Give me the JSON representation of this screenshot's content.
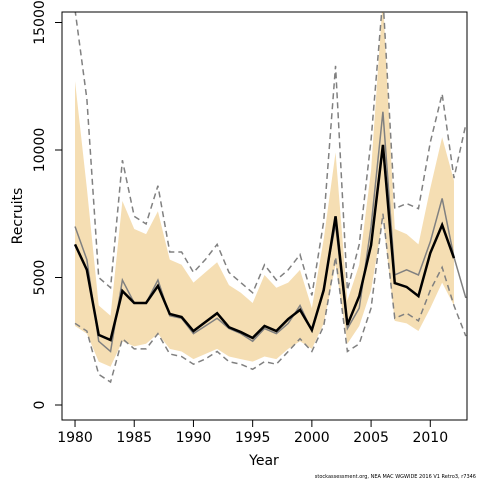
{
  "chart_data": {
    "type": "line",
    "xlabel": "Year",
    "ylabel": "Recruits",
    "footnote": "stockassessment.org, NEA MAC WGWIDE 2016 V1 Retro3, r7346",
    "x": [
      1980,
      1981,
      1982,
      1983,
      1984,
      1985,
      1986,
      1987,
      1988,
      1989,
      1990,
      1991,
      1992,
      1993,
      1994,
      1995,
      1996,
      1997,
      1998,
      1999,
      2000,
      2001,
      2002,
      2003,
      2004,
      2005,
      2006,
      2007,
      2008,
      2009,
      2010,
      2011,
      2012,
      2013
    ],
    "xlim": [
      1978.9,
      2013.1
    ],
    "xticks": [
      1980,
      1985,
      1990,
      1995,
      2000,
      2005,
      2010
    ],
    "ylim": [
      -588,
      15412
    ],
    "yticks": [
      0,
      5000,
      10000,
      15000
    ],
    "band": {
      "color": "#f5deb3",
      "upper": [
        12700,
        8500,
        3900,
        3500,
        8000,
        6900,
        6700,
        7600,
        5700,
        5500,
        4800,
        5200,
        5600,
        4700,
        4400,
        4000,
        5100,
        4600,
        4800,
        5300,
        3800,
        6500,
        9900,
        4100,
        5500,
        9200,
        16000,
        6900,
        6700,
        6300,
        8500,
        10500,
        8800,
        null
      ],
      "lower": [
        3100,
        2800,
        1700,
        1500,
        2500,
        2300,
        2400,
        2800,
        2200,
        2100,
        1800,
        2000,
        2200,
        1900,
        1800,
        1700,
        1900,
        1800,
        2200,
        2500,
        2200,
        3200,
        5500,
        2400,
        3100,
        4500,
        7300,
        3300,
        3200,
        2900,
        3800,
        4800,
        3900,
        null
      ]
    },
    "series": [
      {
        "color": "#808080",
        "dash": true,
        "width": 1.5,
        "values": [
          15500,
          12000,
          5000,
          4600,
          9600,
          7400,
          7100,
          8600,
          6000,
          6000,
          5200,
          5700,
          6300,
          5200,
          4800,
          4400,
          5500,
          4900,
          5300,
          5900,
          4300,
          7200,
          13300,
          4500,
          6300,
          10400,
          16000,
          7700,
          7900,
          7700,
          10300,
          12200,
          8900,
          11000
        ]
      },
      {
        "color": "#808080",
        "dash": true,
        "width": 1.5,
        "values": [
          3200,
          2900,
          1200,
          900,
          2600,
          2200,
          2200,
          2800,
          2000,
          1900,
          1600,
          1800,
          2100,
          1700,
          1600,
          1400,
          1700,
          1600,
          2100,
          2600,
          2100,
          3100,
          5800,
          2100,
          2400,
          3800,
          7500,
          3400,
          3600,
          3300,
          4500,
          5400,
          3900,
          2700
        ]
      },
      {
        "color": "#808080",
        "dash": false,
        "width": 1.5,
        "values": [
          7000,
          5700,
          2500,
          2100,
          4900,
          4000,
          4000,
          4900,
          3500,
          3400,
          2800,
          3100,
          3400,
          3000,
          2800,
          2500,
          3000,
          2800,
          3200,
          3900,
          2900,
          4600,
          7100,
          3000,
          3800,
          7000,
          11500,
          5100,
          5300,
          5100,
          6400,
          8100,
          5800,
          4200
        ]
      },
      {
        "color": "#000000",
        "dash": false,
        "width": 2.5,
        "values": [
          6300,
          5300,
          2750,
          2550,
          4470,
          4000,
          4000,
          4670,
          3570,
          3450,
          2900,
          3250,
          3600,
          3050,
          2860,
          2630,
          3100,
          2900,
          3370,
          3730,
          2940,
          4500,
          7400,
          3140,
          4270,
          6270,
          10200,
          4780,
          4630,
          4270,
          5960,
          7060,
          5760,
          null
        ]
      }
    ]
  }
}
